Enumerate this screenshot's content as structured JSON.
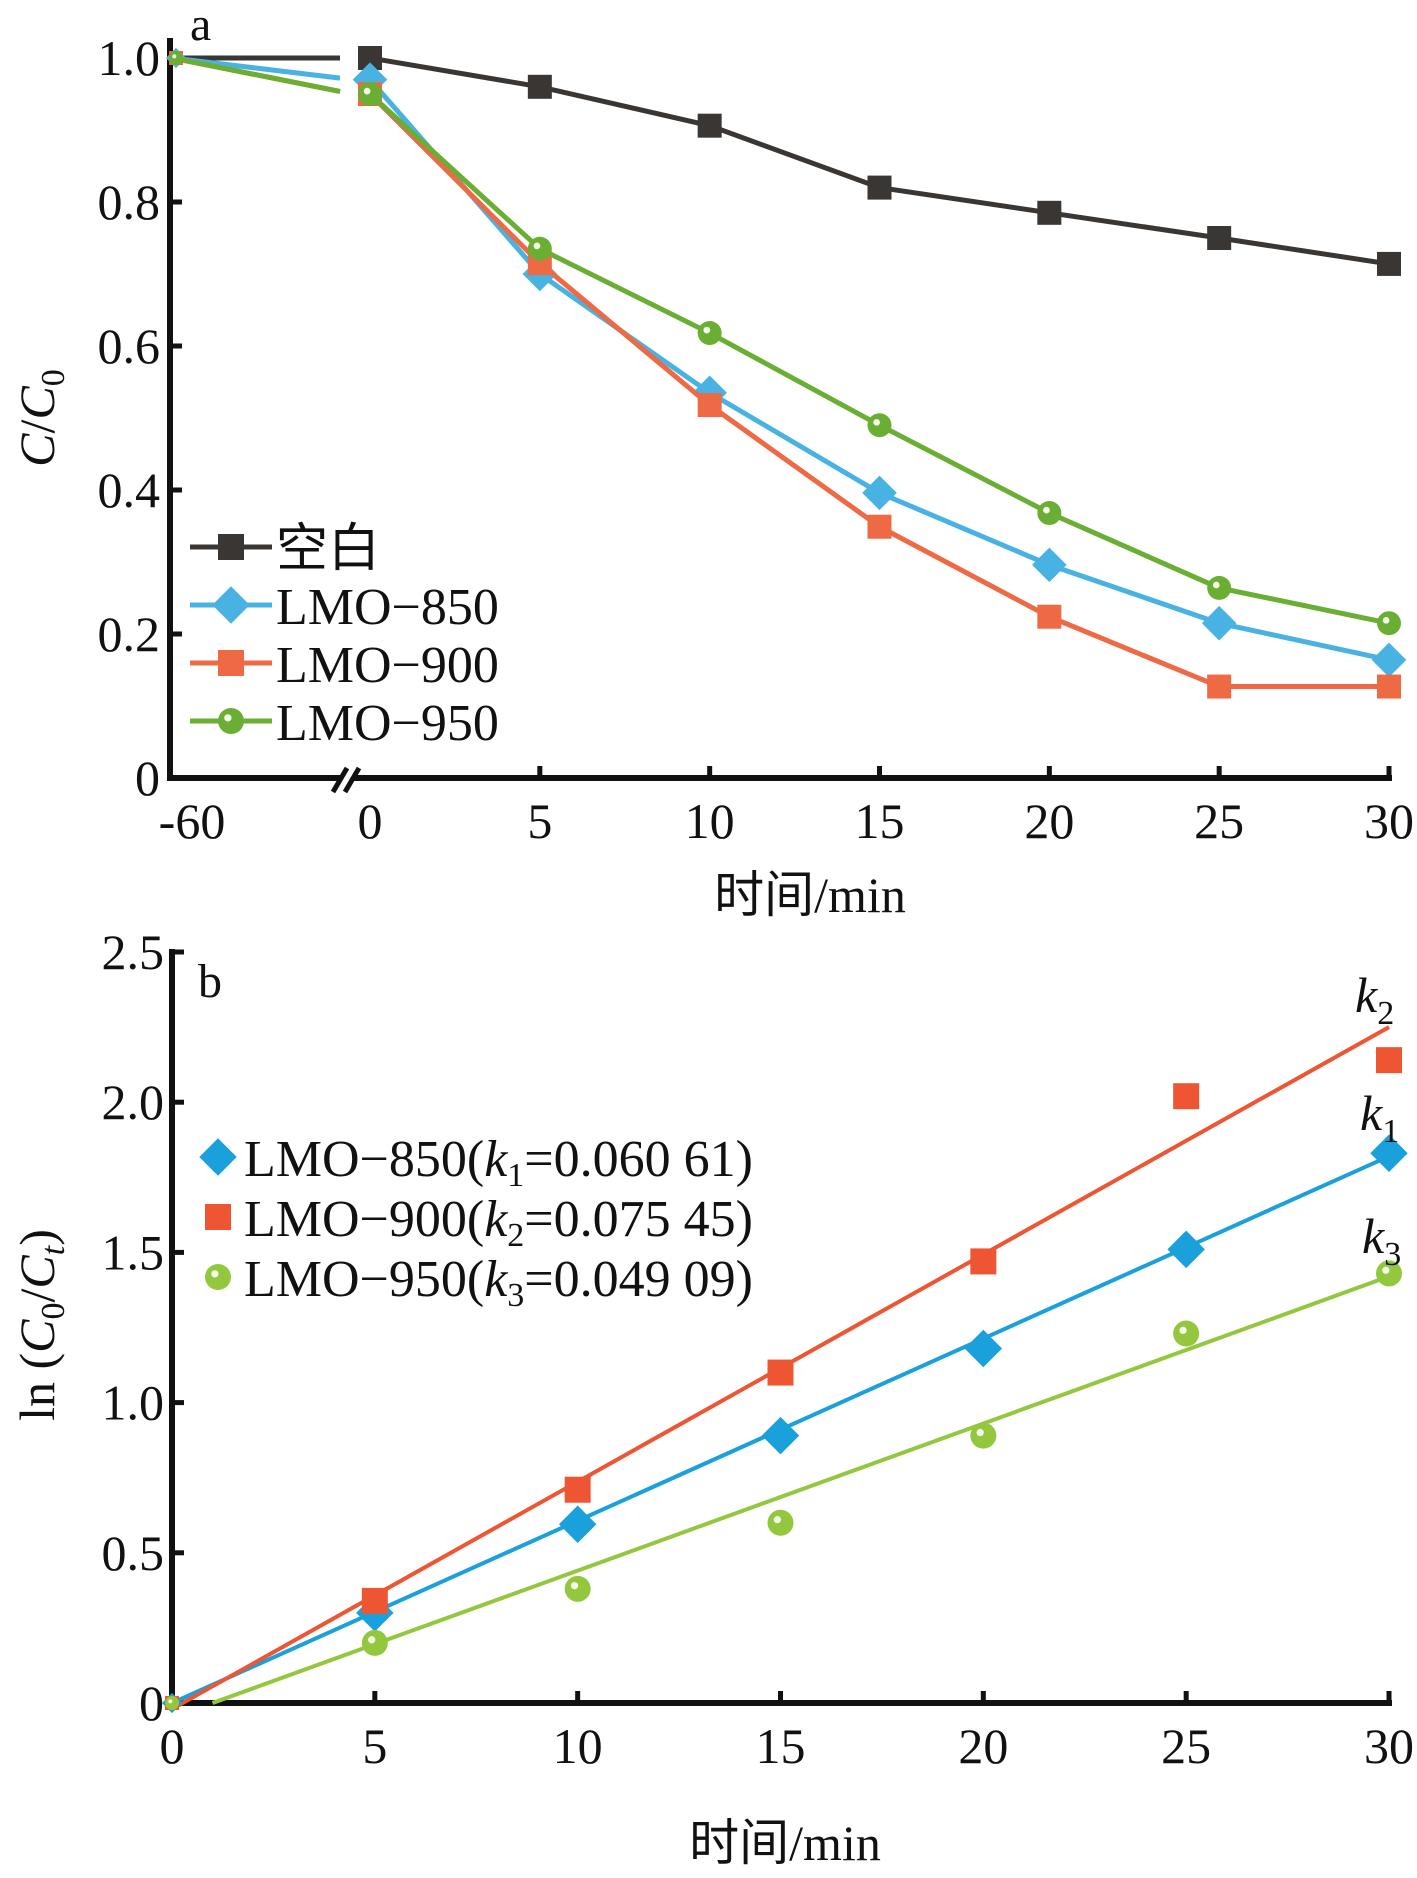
{
  "chart_data": [
    {
      "panel": "a",
      "type": "line",
      "title": "",
      "xlabel": "时间/min",
      "ylabel": "C/C0",
      "ylabel_parts": {
        "italic": "C",
        "slash": "/",
        "italic2": "C",
        "sub": "0"
      },
      "x": [
        -60,
        0,
        5,
        10,
        15,
        20,
        25,
        30
      ],
      "x_tick_labels": [
        "-60",
        "0",
        "5",
        "10",
        "15",
        "20",
        "25",
        "30"
      ],
      "x_axis_break_between": [
        -60,
        0
      ],
      "ylim": [
        0,
        1.0
      ],
      "y_ticks": [
        0,
        0.2,
        0.4,
        0.6,
        0.8,
        1.0
      ],
      "y_tick_labels": [
        "0",
        "0.2",
        "0.4",
        "0.6",
        "0.8",
        "1.0"
      ],
      "grid": false,
      "legend_position": "bottom-left",
      "series": [
        {
          "name": "空白",
          "color": "#3a3633",
          "marker": "square",
          "values": [
            1.0,
            1.0,
            0.96,
            0.906,
            0.82,
            0.785,
            0.75,
            0.714
          ]
        },
        {
          "name": "LMO−850",
          "color": "#48b3e3",
          "marker": "diamond",
          "values": [
            1.0,
            0.97,
            0.7,
            0.535,
            0.396,
            0.296,
            0.215,
            0.164
          ]
        },
        {
          "name": "LMO−900",
          "color": "#ee6a45",
          "marker": "square",
          "values": [
            1.0,
            0.95,
            0.715,
            0.518,
            0.349,
            0.224,
            0.127,
            0.127
          ]
        },
        {
          "name": "LMO−950",
          "color": "#6aae33",
          "marker": "circle",
          "values": [
            1.0,
            0.95,
            0.735,
            0.618,
            0.49,
            0.368,
            0.264,
            0.215
          ]
        }
      ]
    },
    {
      "panel": "b",
      "type": "scatter",
      "title": "",
      "xlabel": "时间/min",
      "ylabel": "ln (C0/Ct)",
      "ylabel_parts": {
        "prefix": "ln (",
        "italic": "C",
        "sub": "0",
        "slash": "/",
        "italic2": "C",
        "sub2": "t",
        "suffix": ")"
      },
      "x": [
        0,
        5,
        10,
        15,
        20,
        25,
        30
      ],
      "x_tick_labels": [
        "0",
        "5",
        "10",
        "15",
        "20",
        "25",
        "30"
      ],
      "xlim": [
        0,
        30
      ],
      "ylim": [
        0,
        2.5
      ],
      "y_ticks": [
        0,
        0.5,
        1.0,
        1.5,
        2.0,
        2.5
      ],
      "y_tick_labels": [
        "0",
        "0.5",
        "1.0",
        "1.5",
        "2.0",
        "2.5"
      ],
      "grid": false,
      "legend_position": "upper-left",
      "series": [
        {
          "name": "LMO−850",
          "k_label": "k",
          "k_sub": "1",
          "k_value": "0.060 61",
          "color": "#1aa0db",
          "marker": "diamond",
          "values": [
            0.0,
            0.3,
            0.595,
            0.89,
            1.18,
            1.51,
            1.83
          ],
          "fit": {
            "x": [
              0,
              30
            ],
            "y": [
              0.0,
              1.82
            ]
          }
        },
        {
          "name": "LMO−900",
          "k_label": "k",
          "k_sub": "2",
          "k_value": "0.075 45",
          "color": "#ee5533",
          "marker": "square",
          "values": [
            0.0,
            0.34,
            0.71,
            1.1,
            1.47,
            2.02,
            2.14
          ],
          "fit": {
            "x": [
              0,
              30
            ],
            "y": [
              -0.02,
              2.25
            ]
          }
        },
        {
          "name": "LMO−950",
          "k_label": "k",
          "k_sub": "3",
          "k_value": "0.049 09",
          "color": "#93c83e",
          "marker": "circle",
          "values": [
            0.0,
            0.2,
            0.38,
            0.6,
            0.89,
            1.23,
            1.43
          ],
          "fit": {
            "x": [
              1,
              30
            ],
            "y": [
              0.0,
              1.42
            ]
          }
        }
      ],
      "line_labels": [
        {
          "text": "k",
          "sub": "2",
          "series": "LMO−900"
        },
        {
          "text": "k",
          "sub": "1",
          "series": "LMO−850"
        },
        {
          "text": "k",
          "sub": "3",
          "series": "LMO−950"
        }
      ]
    }
  ]
}
